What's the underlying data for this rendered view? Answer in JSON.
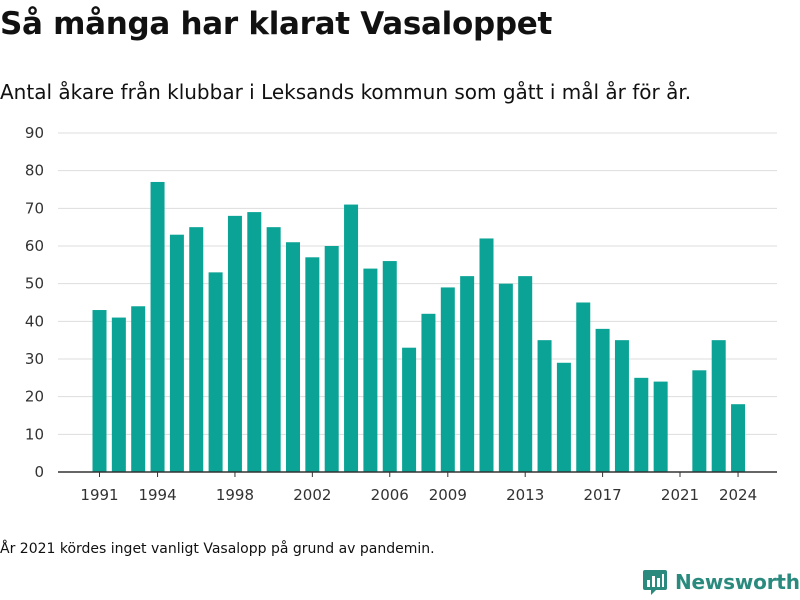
{
  "title": "Så många har klarat Vasaloppet",
  "subtitle": "Antal åkare från klubbar i Leksands kommun som gått i mål år för år.",
  "footnote": "År 2021 kördes inget vanligt Vasalopp på grund av pandemin.",
  "brand": {
    "name": "Newsworthy",
    "color": "#2a8a7e",
    "icon": "chart-logo-icon"
  },
  "colors": {
    "bar": "#0aa396",
    "grid": "#dddddd",
    "axis": "#333333"
  },
  "chart_data": {
    "type": "bar",
    "x": [
      1991,
      1992,
      1993,
      1994,
      1995,
      1996,
      1997,
      1998,
      1999,
      2000,
      2001,
      2002,
      2003,
      2004,
      2005,
      2006,
      2007,
      2008,
      2009,
      2010,
      2011,
      2012,
      2013,
      2014,
      2015,
      2016,
      2017,
      2018,
      2019,
      2020,
      2021,
      2022,
      2023,
      2024
    ],
    "values": [
      43,
      41,
      44,
      77,
      63,
      65,
      53,
      68,
      69,
      65,
      61,
      57,
      60,
      71,
      54,
      56,
      33,
      42,
      49,
      52,
      62,
      50,
      52,
      35,
      29,
      45,
      38,
      35,
      25,
      24,
      null,
      27,
      35,
      18
    ],
    "x_ticks": [
      "1991",
      "1994",
      "1998",
      "2002",
      "2006",
      "2009",
      "2013",
      "2017",
      "2021",
      "2024"
    ],
    "y_ticks": [
      "0",
      "10",
      "20",
      "30",
      "40",
      "50",
      "60",
      "70",
      "80",
      "90"
    ],
    "ylim": [
      0,
      90
    ],
    "grid": true
  }
}
